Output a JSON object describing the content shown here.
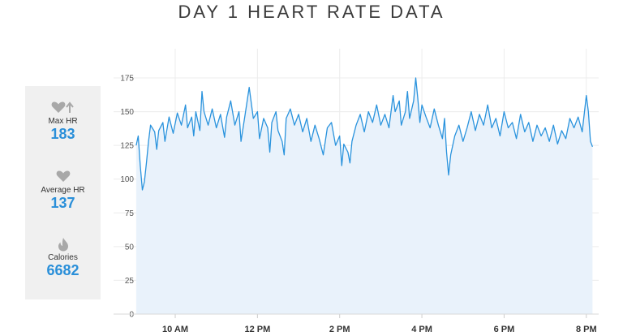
{
  "title": "DAY 1 HEART RATE DATA",
  "colors": {
    "line": "#2a93dd",
    "area": "#e9f2fb",
    "value": "#2a8fd9",
    "panel": "#f0f0f0",
    "icon": "#a8a8a8"
  },
  "stats": [
    {
      "icon": "heart-arrow-up-icon",
      "label": "Max HR",
      "value": "183"
    },
    {
      "icon": "heart-icon",
      "label": "Average HR",
      "value": "137"
    },
    {
      "icon": "flame-icon",
      "label": "Calories",
      "value": "6682"
    }
  ],
  "chart_data": {
    "type": "area",
    "title": "DAY 1 HEART RATE DATA",
    "xlabel": "",
    "ylabel": "",
    "ylim": [
      0,
      175
    ],
    "yticks": [
      0,
      25,
      50,
      75,
      100,
      125,
      150,
      175
    ],
    "xlim": [
      8.5,
      20.3
    ],
    "xticks": [
      {
        "value": 10,
        "label": "10 AM"
      },
      {
        "value": 12,
        "label": "12 PM"
      },
      {
        "value": 14,
        "label": "2 PM"
      },
      {
        "value": 16,
        "label": "4 PM"
      },
      {
        "value": 18,
        "label": "6 PM"
      },
      {
        "value": 20,
        "label": "8 PM"
      }
    ],
    "grid": true,
    "series": [
      {
        "points": [
          [
            9.05,
            125
          ],
          [
            9.1,
            132
          ],
          [
            9.15,
            110
          ],
          [
            9.2,
            92
          ],
          [
            9.25,
            98
          ],
          [
            9.3,
            112
          ],
          [
            9.35,
            128
          ],
          [
            9.4,
            140
          ],
          [
            9.5,
            135
          ],
          [
            9.55,
            122
          ],
          [
            9.6,
            136
          ],
          [
            9.7,
            142
          ],
          [
            9.75,
            128
          ],
          [
            9.85,
            146
          ],
          [
            9.95,
            134
          ],
          [
            10.05,
            149
          ],
          [
            10.15,
            140
          ],
          [
            10.25,
            155
          ],
          [
            10.3,
            138
          ],
          [
            10.4,
            146
          ],
          [
            10.45,
            132
          ],
          [
            10.5,
            150
          ],
          [
            10.6,
            136
          ],
          [
            10.65,
            165
          ],
          [
            10.7,
            150
          ],
          [
            10.8,
            140
          ],
          [
            10.9,
            152
          ],
          [
            11.0,
            138
          ],
          [
            11.1,
            148
          ],
          [
            11.2,
            131
          ],
          [
            11.25,
            146
          ],
          [
            11.35,
            158
          ],
          [
            11.45,
            140
          ],
          [
            11.55,
            150
          ],
          [
            11.6,
            128
          ],
          [
            11.7,
            148
          ],
          [
            11.75,
            158
          ],
          [
            11.8,
            168
          ],
          [
            11.9,
            145
          ],
          [
            12.0,
            150
          ],
          [
            12.05,
            130
          ],
          [
            12.15,
            145
          ],
          [
            12.25,
            138
          ],
          [
            12.3,
            120
          ],
          [
            12.35,
            142
          ],
          [
            12.45,
            150
          ],
          [
            12.5,
            136
          ],
          [
            12.6,
            128
          ],
          [
            12.65,
            118
          ],
          [
            12.7,
            145
          ],
          [
            12.8,
            152
          ],
          [
            12.9,
            140
          ],
          [
            13.0,
            148
          ],
          [
            13.1,
            135
          ],
          [
            13.2,
            145
          ],
          [
            13.3,
            128
          ],
          [
            13.4,
            140
          ],
          [
            13.5,
            130
          ],
          [
            13.6,
            118
          ],
          [
            13.7,
            138
          ],
          [
            13.8,
            142
          ],
          [
            13.9,
            125
          ],
          [
            14.0,
            132
          ],
          [
            14.05,
            110
          ],
          [
            14.1,
            126
          ],
          [
            14.2,
            120
          ],
          [
            14.25,
            112
          ],
          [
            14.3,
            128
          ],
          [
            14.4,
            140
          ],
          [
            14.5,
            148
          ],
          [
            14.6,
            135
          ],
          [
            14.7,
            150
          ],
          [
            14.8,
            142
          ],
          [
            14.9,
            155
          ],
          [
            15.0,
            140
          ],
          [
            15.1,
            148
          ],
          [
            15.2,
            138
          ],
          [
            15.3,
            162
          ],
          [
            15.35,
            150
          ],
          [
            15.45,
            158
          ],
          [
            15.5,
            140
          ],
          [
            15.6,
            150
          ],
          [
            15.65,
            165
          ],
          [
            15.7,
            145
          ],
          [
            15.8,
            158
          ],
          [
            15.85,
            175
          ],
          [
            15.9,
            160
          ],
          [
            15.95,
            142
          ],
          [
            16.0,
            155
          ],
          [
            16.1,
            146
          ],
          [
            16.2,
            138
          ],
          [
            16.3,
            152
          ],
          [
            16.4,
            140
          ],
          [
            16.5,
            130
          ],
          [
            16.55,
            145
          ],
          [
            16.6,
            120
          ],
          [
            16.65,
            103
          ],
          [
            16.7,
            118
          ],
          [
            16.8,
            132
          ],
          [
            16.9,
            140
          ],
          [
            17.0,
            128
          ],
          [
            17.1,
            138
          ],
          [
            17.2,
            150
          ],
          [
            17.3,
            136
          ],
          [
            17.4,
            148
          ],
          [
            17.5,
            140
          ],
          [
            17.6,
            155
          ],
          [
            17.7,
            138
          ],
          [
            17.8,
            145
          ],
          [
            17.9,
            132
          ],
          [
            18.0,
            150
          ],
          [
            18.1,
            138
          ],
          [
            18.2,
            142
          ],
          [
            18.3,
            130
          ],
          [
            18.4,
            148
          ],
          [
            18.5,
            135
          ],
          [
            18.6,
            142
          ],
          [
            18.7,
            128
          ],
          [
            18.8,
            140
          ],
          [
            18.9,
            132
          ],
          [
            19.0,
            138
          ],
          [
            19.1,
            128
          ],
          [
            19.2,
            140
          ],
          [
            19.3,
            126
          ],
          [
            19.4,
            136
          ],
          [
            19.5,
            130
          ],
          [
            19.6,
            145
          ],
          [
            19.7,
            138
          ],
          [
            19.8,
            146
          ],
          [
            19.9,
            135
          ],
          [
            20.0,
            162
          ],
          [
            20.05,
            150
          ],
          [
            20.1,
            128
          ],
          [
            20.15,
            124
          ]
        ]
      }
    ]
  }
}
